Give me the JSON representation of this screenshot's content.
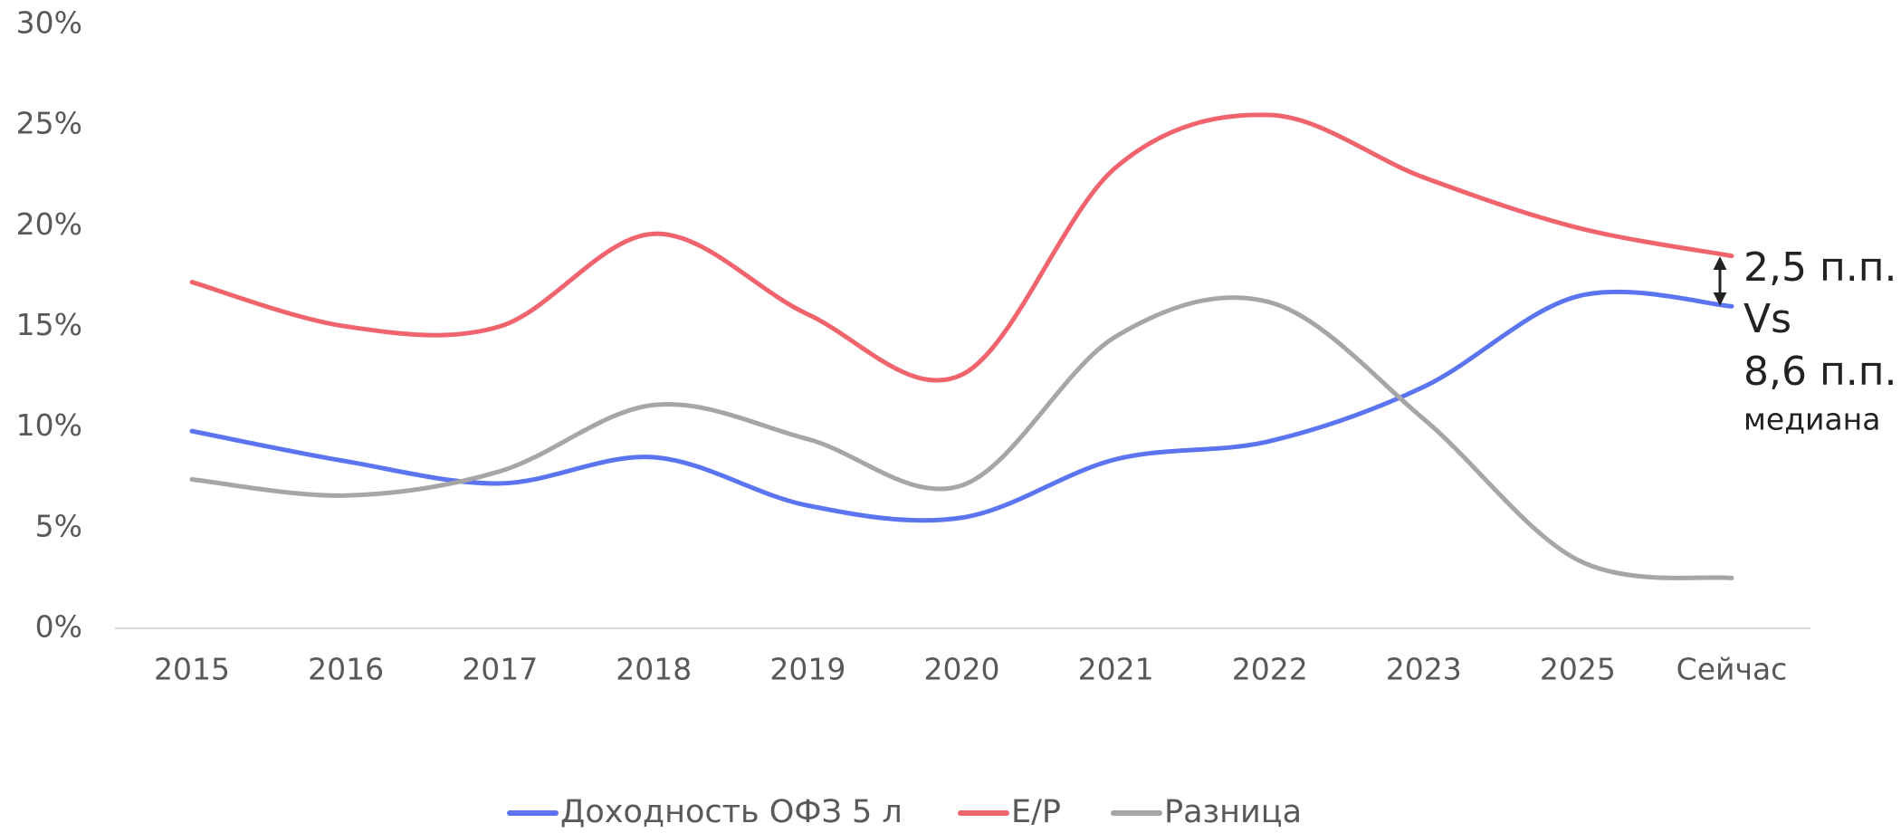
{
  "chart_data": {
    "type": "line",
    "categories": [
      "2015",
      "2016",
      "2017",
      "2018",
      "2019",
      "2020",
      "2021",
      "2022",
      "2023",
      "2025",
      "Сейчас"
    ],
    "series": [
      {
        "name": "Доходность ОФЗ 5 л",
        "color": "#5b74f0",
        "values": [
          9.8,
          8.3,
          7.2,
          8.5,
          6.1,
          5.5,
          8.4,
          9.3,
          12.0,
          16.5,
          16.0
        ]
      },
      {
        "name": "E/P",
        "color": "#f0646e",
        "values": [
          17.2,
          15.0,
          15.0,
          19.6,
          15.6,
          12.6,
          22.9,
          25.5,
          22.4,
          19.9,
          18.5
        ]
      },
      {
        "name": "Разница",
        "color": "#a6a6a6",
        "values": [
          7.4,
          6.6,
          7.8,
          11.1,
          9.4,
          7.1,
          14.5,
          16.2,
          10.4,
          3.4,
          2.5
        ]
      }
    ],
    "ylim": [
      0,
      30
    ],
    "yticks": [
      {
        "value": 0,
        "label": "0%"
      },
      {
        "value": 5,
        "label": "5%"
      },
      {
        "value": 10,
        "label": "10%"
      },
      {
        "value": 15,
        "label": "15%"
      },
      {
        "value": 20,
        "label": "20%"
      },
      {
        "value": 25,
        "label": "25%"
      },
      {
        "value": 30,
        "label": "30%"
      }
    ],
    "annotations": [
      "2,5 п.п.",
      "Vs",
      "8,6 п.п.",
      "медиана"
    ],
    "legend": "bottom"
  }
}
